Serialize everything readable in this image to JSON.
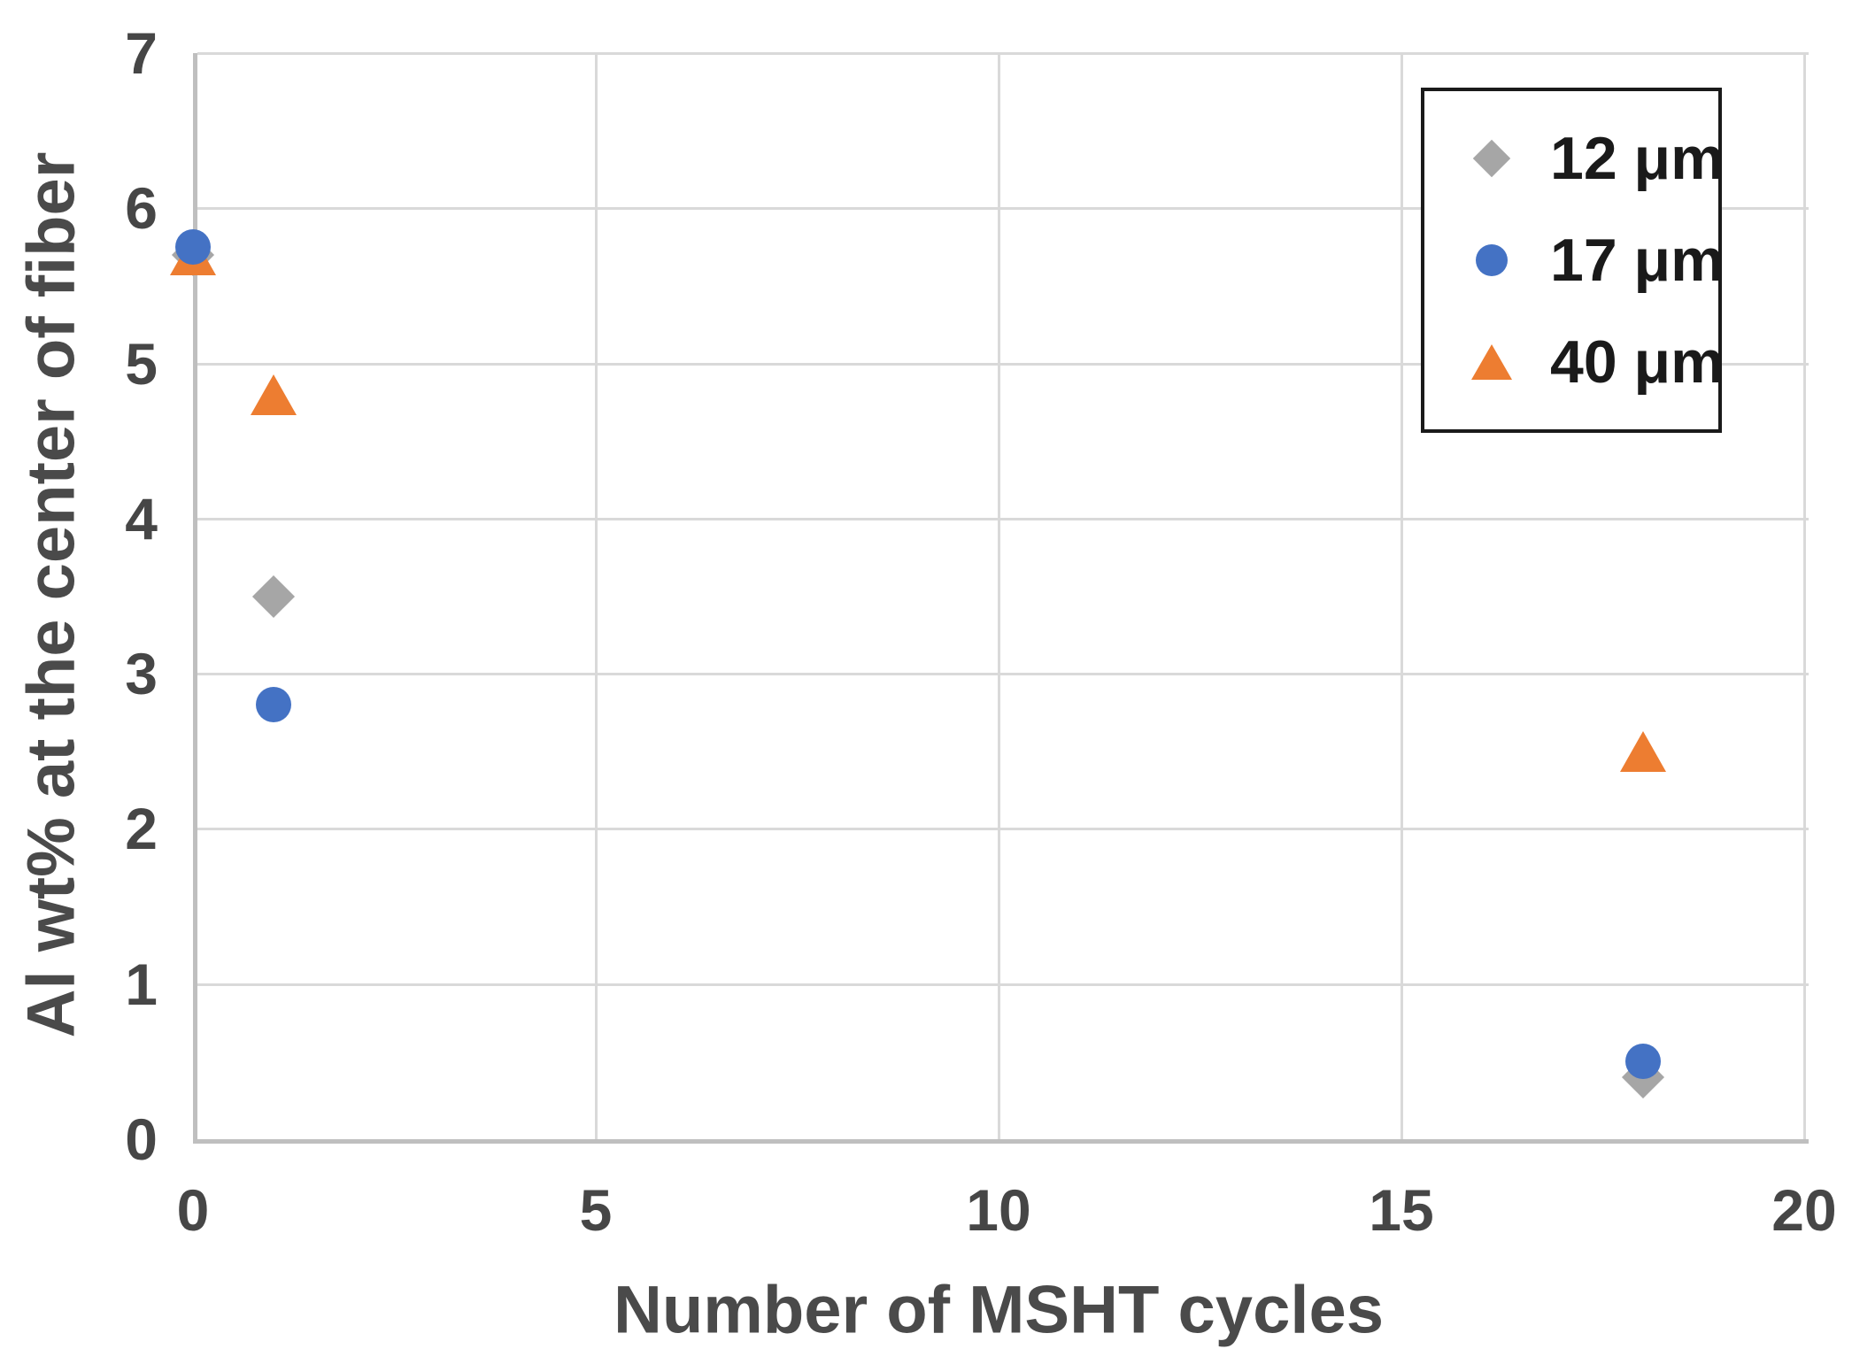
{
  "chart_data": {
    "type": "scatter",
    "title": "",
    "xlabel": "Number of MSHT cycles",
    "ylabel": "Al wt% at the center of fiber",
    "xlim": [
      0,
      20
    ],
    "ylim": [
      0,
      7
    ],
    "xticks": [
      0,
      5,
      10,
      15,
      20
    ],
    "yticks": [
      0,
      1,
      2,
      3,
      4,
      5,
      6,
      7
    ],
    "grid": true,
    "legend_position": "top-right-inside",
    "series": [
      {
        "name": "12 μm",
        "marker": "diamond",
        "color": "#A6A6A6",
        "points": [
          [
            0,
            5.7
          ],
          [
            1,
            3.5
          ],
          [
            18,
            0.4
          ]
        ]
      },
      {
        "name": "17 μm",
        "marker": "circle",
        "color": "#4472C4",
        "points": [
          [
            0,
            5.75
          ],
          [
            1,
            2.8
          ],
          [
            18,
            0.5
          ]
        ]
      },
      {
        "name": "40 μm",
        "marker": "triangle",
        "color": "#ED7D31",
        "points": [
          [
            0,
            5.7
          ],
          [
            1,
            4.8
          ],
          [
            18,
            2.5
          ]
        ]
      }
    ]
  },
  "styles": {
    "grid_color": "#D9D9D9",
    "axis_line_color": "#BFBFBF",
    "tick_label_color": "#464646",
    "axis_title_color": "#4A4A4A",
    "legend_text_color": "#1A1A1A",
    "legend_border_color": "#1A1A1A",
    "background_color": "#FFFFFF"
  }
}
